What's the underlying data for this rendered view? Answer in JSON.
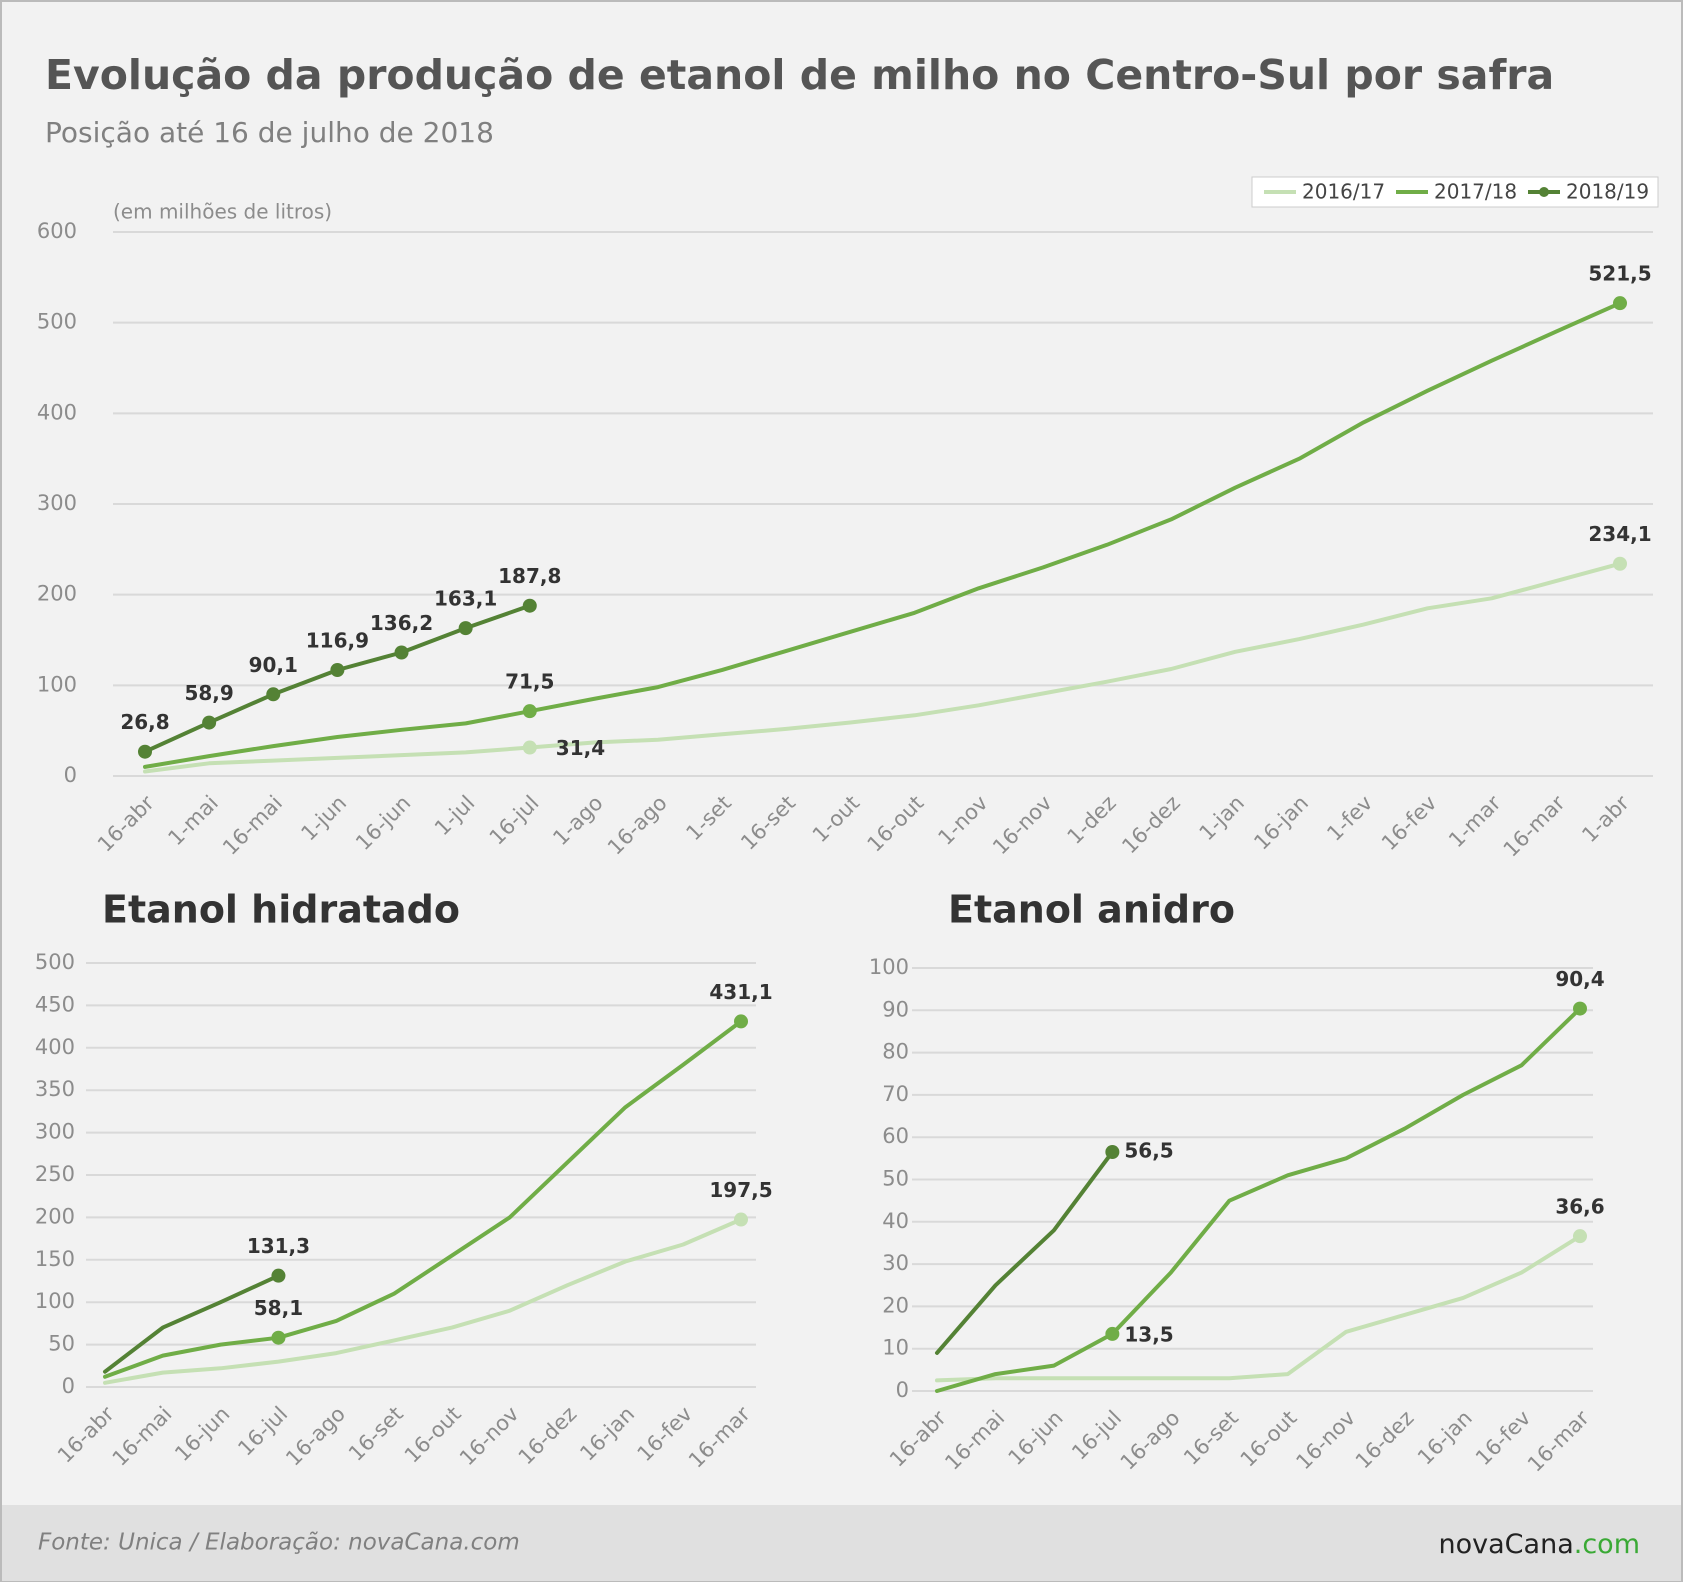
{
  "header": {
    "title": "Evolução da produção de etanol de milho no Centro-Sul por safra",
    "subtitle": "Posição até 16 de julho de 2018"
  },
  "footer": {
    "source": "Fonte: Unica / Elaboração: novaCana.com",
    "brand": [
      "novaCana",
      ".com"
    ]
  },
  "chart_data": [
    {
      "type": "line",
      "ylabel": "(em milhões de litros)",
      "legend": "top-right",
      "grid": true,
      "categories": [
        "16-abr",
        "1-mai",
        "16-mai",
        "1-jun",
        "16-jun",
        "1-jul",
        "16-jul",
        "1-ago",
        "16-ago",
        "1-set",
        "16-set",
        "1-out",
        "16-out",
        "1-nov",
        "16-nov",
        "1-dez",
        "16-dez",
        "1-jan",
        "16-jan",
        "1-fev",
        "16-fev",
        "1-mar",
        "16-mar",
        "1-abr"
      ],
      "ylim": [
        0,
        600
      ],
      "yticks": [
        0,
        100,
        200,
        300,
        400,
        500,
        600
      ],
      "series": [
        {
          "name": "2016/17",
          "color": "#c5e0b4",
          "values": [
            5,
            14,
            17,
            20,
            23,
            26,
            31.4,
            37,
            40,
            46,
            52,
            59,
            67,
            78,
            91,
            104,
            118,
            137,
            151,
            167,
            185,
            196,
            215,
            234.1
          ],
          "value_labels": [
            null,
            null,
            null,
            null,
            null,
            null,
            "31,4",
            null,
            null,
            null,
            null,
            null,
            null,
            null,
            null,
            null,
            null,
            null,
            null,
            null,
            null,
            null,
            null,
            "234,1"
          ]
        },
        {
          "name": "2017/18",
          "color": "#70ad47",
          "values": [
            10,
            22,
            33,
            43,
            51,
            58,
            71.5,
            85,
            98,
            117,
            138,
            159,
            180,
            207,
            230,
            255,
            283,
            318,
            350,
            390,
            425,
            458,
            490,
            521.5
          ],
          "value_labels": [
            null,
            null,
            null,
            null,
            null,
            null,
            "71,5",
            null,
            null,
            null,
            null,
            null,
            null,
            null,
            null,
            null,
            null,
            null,
            null,
            null,
            null,
            null,
            null,
            "521,5"
          ]
        },
        {
          "name": "2018/19",
          "color": "#548235",
          "values": [
            26.8,
            58.9,
            90.1,
            116.9,
            136.2,
            163.1,
            187.8,
            null,
            null,
            null,
            null,
            null,
            null,
            null,
            null,
            null,
            null,
            null,
            null,
            null,
            null,
            null,
            null,
            null
          ],
          "value_labels": [
            "26,8",
            "58,9",
            "90,1",
            "116,9",
            "136,2",
            "163,1",
            "187,8",
            null,
            null,
            null,
            null,
            null,
            null,
            null,
            null,
            null,
            null,
            null,
            null,
            null,
            null,
            null,
            null,
            null
          ]
        }
      ]
    },
    {
      "type": "line",
      "title": "Etanol hidratado",
      "grid": true,
      "categories": [
        "16-abr",
        "16-mai",
        "16-jun",
        "16-jul",
        "16-ago",
        "16-set",
        "16-out",
        "16-nov",
        "16-dez",
        "16-jan",
        "16-fev",
        "16-mar"
      ],
      "ylim": [
        0,
        500
      ],
      "yticks": [
        0,
        50,
        100,
        150,
        200,
        250,
        300,
        350,
        400,
        450,
        500
      ],
      "series": [
        {
          "name": "2016/17",
          "color": "#c5e0b4",
          "values": [
            5,
            17,
            22,
            30,
            40,
            55,
            70,
            90,
            120,
            148,
            168,
            197.5
          ],
          "value_labels": [
            null,
            null,
            null,
            null,
            null,
            null,
            null,
            null,
            null,
            null,
            null,
            "197,5"
          ]
        },
        {
          "name": "2017/18",
          "color": "#70ad47",
          "values": [
            12,
            37,
            50,
            58.1,
            78,
            110,
            155,
            200,
            265,
            330,
            380,
            431.1
          ],
          "value_labels": [
            null,
            null,
            null,
            "58,1",
            null,
            null,
            null,
            null,
            null,
            null,
            null,
            "431,1"
          ]
        },
        {
          "name": "2018/19",
          "color": "#548235",
          "values": [
            18,
            70,
            100,
            131.3,
            null,
            null,
            null,
            null,
            null,
            null,
            null,
            null
          ],
          "value_labels": [
            null,
            null,
            null,
            "131,3",
            null,
            null,
            null,
            null,
            null,
            null,
            null,
            null
          ]
        }
      ]
    },
    {
      "type": "line",
      "title": "Etanol anidro",
      "grid": true,
      "categories": [
        "16-abr",
        "16-mai",
        "16-jun",
        "16-jul",
        "16-ago",
        "16-set",
        "16-out",
        "16-nov",
        "16-dez",
        "16-jan",
        "16-fev",
        "16-mar"
      ],
      "ylim": [
        0,
        100
      ],
      "yticks": [
        0,
        10,
        20,
        30,
        40,
        50,
        60,
        70,
        80,
        90,
        100
      ],
      "series": [
        {
          "name": "2016/17",
          "color": "#c5e0b4",
          "values": [
            2.5,
            3,
            3,
            3,
            3,
            3,
            4,
            14,
            18,
            22,
            28,
            36.6
          ],
          "value_labels": [
            null,
            null,
            null,
            null,
            null,
            null,
            null,
            null,
            null,
            null,
            null,
            "36,6"
          ]
        },
        {
          "name": "2017/18",
          "color": "#70ad47",
          "values": [
            0,
            4,
            6,
            13.5,
            28,
            45,
            51,
            55,
            62,
            70,
            77,
            90.4
          ],
          "value_labels": [
            null,
            null,
            null,
            "13,5",
            null,
            null,
            null,
            null,
            null,
            null,
            null,
            "90,4"
          ]
        },
        {
          "name": "2018/19",
          "color": "#548235",
          "values": [
            9,
            25,
            38,
            56.5,
            null,
            null,
            null,
            null,
            null,
            null,
            null,
            null
          ],
          "value_labels": [
            null,
            null,
            null,
            "56,5",
            null,
            null,
            null,
            null,
            null,
            null,
            null,
            null
          ]
        }
      ]
    }
  ]
}
